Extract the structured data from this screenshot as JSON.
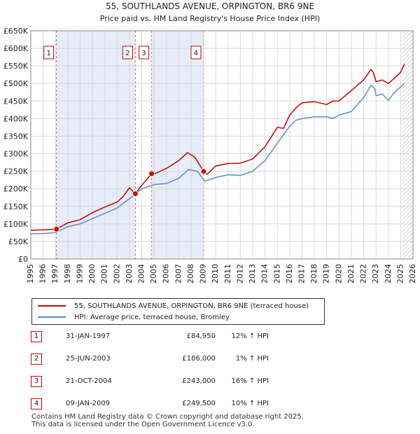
{
  "chart_data": {
    "type": "line",
    "title": "55, SOUTHLANDS AVENUE, ORPINGTON, BR6 9NE",
    "subtitle": "Price paid vs. HM Land Registry's House Price Index (HPI)",
    "ylim": [
      0,
      650000
    ],
    "xlim": [
      1995,
      2026
    ],
    "y_ticks": [
      0,
      50000,
      100000,
      150000,
      200000,
      250000,
      300000,
      350000,
      400000,
      450000,
      500000,
      550000,
      600000,
      650000
    ],
    "y_tick_labels": [
      "£0",
      "£50K",
      "£100K",
      "£150K",
      "£200K",
      "£250K",
      "£300K",
      "£350K",
      "£400K",
      "£450K",
      "£500K",
      "£550K",
      "£600K",
      "£650K"
    ],
    "x_ticks": [
      1995,
      1996,
      1997,
      1998,
      1999,
      2000,
      2001,
      2002,
      2003,
      2004,
      2005,
      2006,
      2007,
      2008,
      2009,
      2010,
      2011,
      2012,
      2013,
      2014,
      2015,
      2016,
      2017,
      2018,
      2019,
      2020,
      2021,
      2022,
      2023,
      2024,
      2025,
      2026
    ],
    "x_tick_labels": [
      "1995",
      "1996",
      "1997",
      "1998",
      "1999",
      "2000",
      "2001",
      "2002",
      "2003",
      "2004",
      "2005",
      "2006",
      "2007",
      "2008",
      "2009",
      "2010",
      "2011",
      "2012",
      "2013",
      "2014",
      "2015",
      "2016",
      "2017",
      "2018",
      "2019",
      "2020",
      "2021",
      "2022",
      "2023",
      "2024",
      "2025",
      "2026"
    ],
    "grid": true,
    "shaded_periods": [
      [
        1997.08,
        2003.48
      ],
      [
        2004.8,
        2009.02
      ]
    ],
    "future_hatch_from": 2025.1,
    "series": [
      {
        "name": "55, SOUTHLANDS AVENUE, ORPINGTON, BR6 9NE (terraced house)",
        "color": "#cc0000",
        "x": [
          1995,
          1996,
          1997.08,
          1998,
          1999,
          2000,
          2001,
          2002,
          2002.5,
          2003,
          2003.48,
          2004,
          2004.8,
          2005,
          2006,
          2007,
          2007.7,
          2008.3,
          2009.02,
          2009.3,
          2010,
          2011,
          2012,
          2013,
          2014,
          2015,
          2015.5,
          2016,
          2016.5,
          2017,
          2018,
          2019,
          2019.5,
          2020,
          2021,
          2021.5,
          2022,
          2022.6,
          2022.8,
          2023,
          2023.5,
          2024,
          2024.5,
          2025,
          2025.3
        ],
        "y": [
          82000,
          83000,
          84950,
          103000,
          112000,
          132000,
          148000,
          162000,
          178000,
          203000,
          186000,
          210000,
          243000,
          242000,
          258000,
          280000,
          303000,
          290000,
          249500,
          241000,
          265000,
          272000,
          273000,
          285000,
          320000,
          375000,
          372000,
          410000,
          430000,
          445000,
          448000,
          440000,
          450000,
          450000,
          480000,
          495000,
          510000,
          540000,
          530000,
          505000,
          510000,
          500000,
          515000,
          532000,
          555000
        ]
      },
      {
        "name": "HPI: Average price, terraced house, Bromley",
        "color": "#5b8fd0",
        "x": [
          1995,
          1996,
          1997,
          1998,
          1999,
          2000,
          2001,
          2002,
          2003,
          2004,
          2005,
          2006,
          2007,
          2007.8,
          2008.5,
          2009.1,
          2010,
          2011,
          2012,
          2013,
          2014,
          2015,
          2016,
          2016.5,
          2017,
          2018,
          2019,
          2019.5,
          2020,
          2021,
          2022,
          2022.6,
          2022.9,
          2023,
          2023.5,
          2024,
          2024.5,
          2025,
          2025.3
        ],
        "y": [
          72000,
          72500,
          75000,
          92000,
          100000,
          115000,
          130000,
          145000,
          172000,
          200000,
          212000,
          215000,
          230000,
          255000,
          250000,
          222000,
          232000,
          240000,
          238000,
          250000,
          280000,
          330000,
          378000,
          395000,
          400000,
          405000,
          405000,
          400000,
          410000,
          420000,
          460000,
          495000,
          485000,
          465000,
          470000,
          452000,
          475000,
          490000,
          500000
        ]
      }
    ],
    "sale_markers": [
      {
        "label": "1",
        "x": 1997.08,
        "y": 84950
      },
      {
        "label": "2",
        "x": 2003.48,
        "y": 186000
      },
      {
        "label": "3",
        "x": 2004.8,
        "y": 243000
      },
      {
        "label": "4",
        "x": 2009.02,
        "y": 249500
      }
    ]
  },
  "legend": {
    "property_label": "55, SOUTHLANDS AVENUE, ORPINGTON, BR6 9NE (terraced house)",
    "property_color": "#cc0000",
    "hpi_label": "HPI: Average price, terraced house, Bromley",
    "hpi_color": "#5b8fd0"
  },
  "sales": [
    {
      "num": "1",
      "date": "31-JAN-1997",
      "price": "£84,950",
      "hpi": "12% ↑ HPI"
    },
    {
      "num": "2",
      "date": "25-JUN-2003",
      "price": "£186,000",
      "hpi": "1% ↑ HPI"
    },
    {
      "num": "3",
      "date": "21-OCT-2004",
      "price": "£243,000",
      "hpi": "16% ↑ HPI"
    },
    {
      "num": "4",
      "date": "09-JAN-2009",
      "price": "£249,500",
      "hpi": "10% ↑ HPI"
    }
  ],
  "footer": {
    "line1": "Contains HM Land Registry data © Crown copyright and database right 2025.",
    "line2": "This data is licensed under the Open Government Licence v3.0."
  }
}
